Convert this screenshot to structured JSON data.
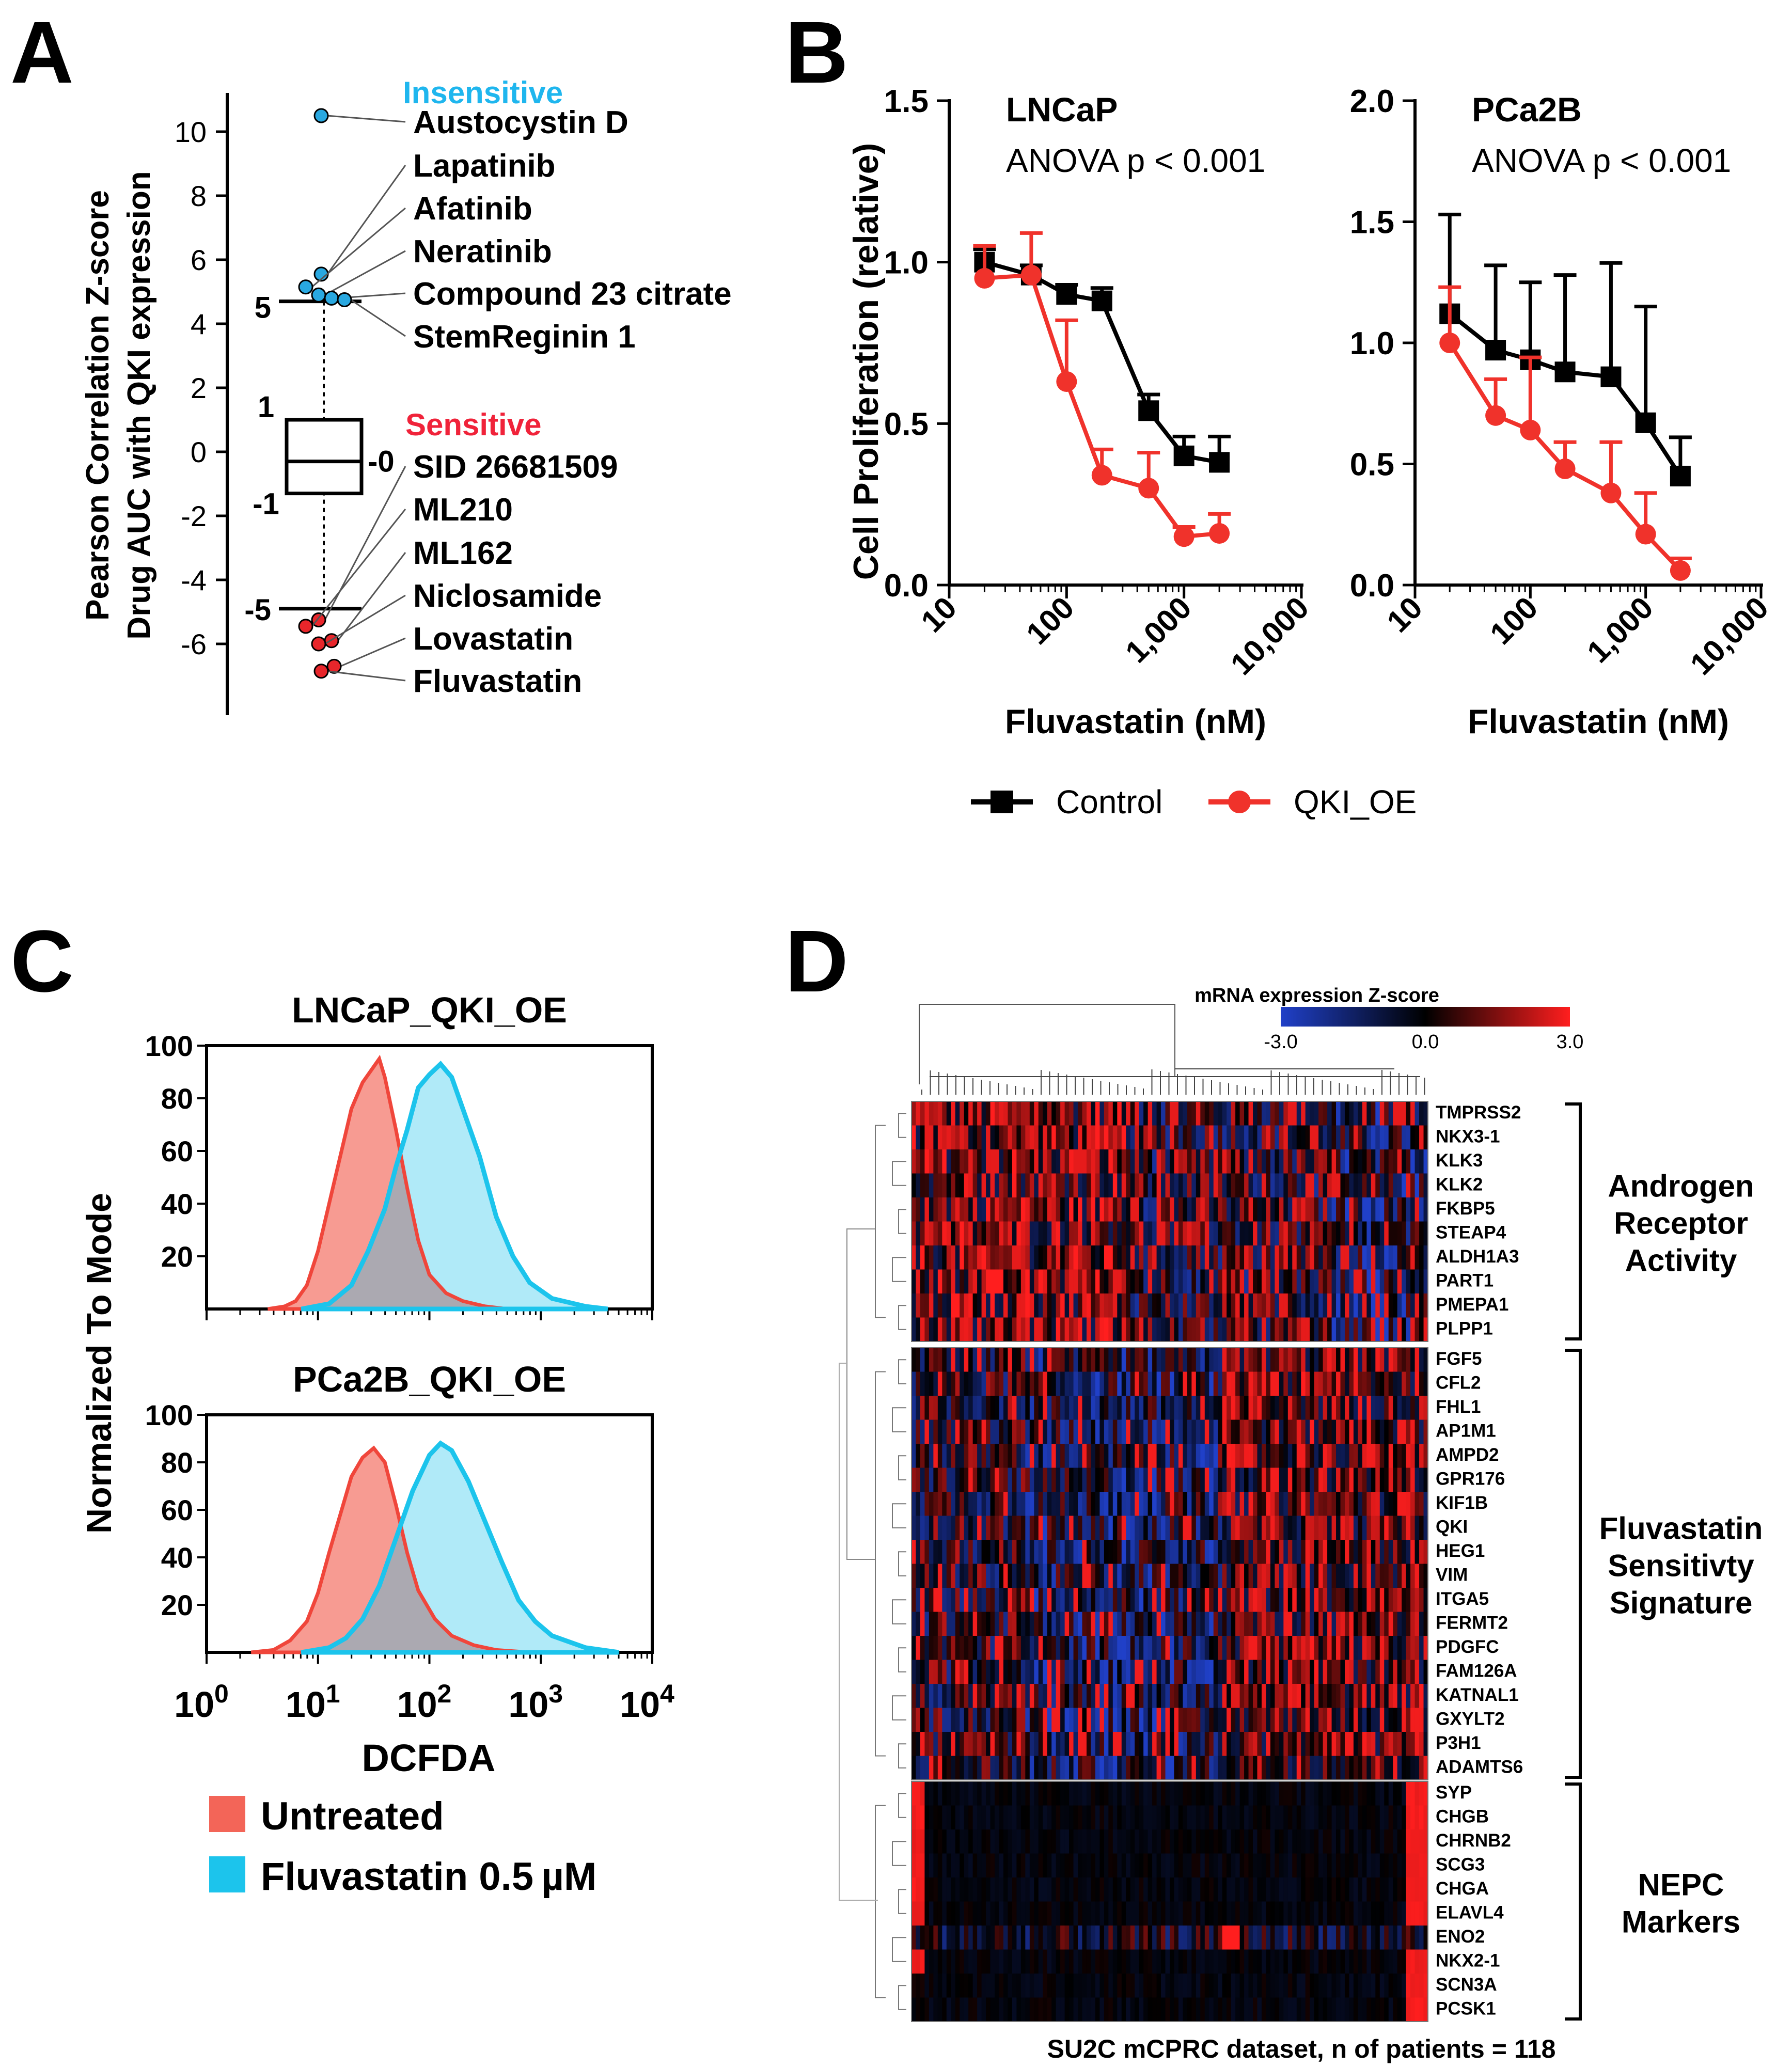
{
  "chart_data": [
    {
      "panel": "A",
      "type": "scatter",
      "ylabel_line1": "Pearson Correlation Z-score",
      "ylabel_line2": "Drug AUC with QKI expression",
      "yticks": [
        "10",
        "8",
        "6",
        "4",
        "2",
        "0",
        "-2",
        "-4",
        "-6"
      ],
      "ylim": [
        -7.8,
        11.5
      ],
      "box": {
        "q1": -1.3,
        "median": -0.3,
        "q3": 1.0,
        "label_q3": "1",
        "label_median": "-0",
        "label_q1": "-1"
      },
      "thresholds": {
        "upper": 4.7,
        "lower": -4.9,
        "label_upper": "5",
        "label_lower": "-5"
      },
      "group_insensitive": "Insensitive",
      "group_sensitive": "Sensitive",
      "insensitive": [
        {
          "name": "Austocystin D",
          "z": 10.5
        },
        {
          "name": "Lapatinib",
          "z": 5.55
        },
        {
          "name": "Afatinib",
          "z": 5.15
        },
        {
          "name": "Neratinib",
          "z": 4.9
        },
        {
          "name": "Compound 23 citrate",
          "z": 4.8
        },
        {
          "name": "StemReginin 1",
          "z": 4.75
        }
      ],
      "sensitive": [
        {
          "name": "SID 26681509",
          "z": -5.25
        },
        {
          "name": "ML210",
          "z": -5.45
        },
        {
          "name": "ML162",
          "z": -5.9
        },
        {
          "name": "Niclosamide",
          "z": -6.0
        },
        {
          "name": "Lovastatin",
          "z": -6.7
        },
        {
          "name": "Fluvastatin",
          "z": -6.85
        }
      ],
      "colors": {
        "insensitive": "#29a8e0",
        "sensitive": "#e8262b",
        "insensitive_label": "#1fb6ee",
        "sensitive_label": "#f0233a"
      }
    },
    {
      "panel": "B",
      "type": "line",
      "ylabel": "Cell Proliferation (relative)",
      "xlabel": "Fluvastatin (nM)",
      "xticks": [
        "10",
        "100",
        "1,000",
        "10,000"
      ],
      "legend": [
        "Control",
        "QKI_OE"
      ],
      "colors": {
        "Control": "#000000",
        "QKI_OE": "#f0322b"
      },
      "charts": [
        {
          "title": "LNCaP",
          "subtitle": "ANOVA p < 0.001",
          "ylim": [
            0,
            1.5
          ],
          "yticks": [
            "0.0",
            "0.5",
            "1.0",
            "1.5"
          ],
          "x": [
            20,
            50,
            100,
            200,
            500,
            1000,
            2000
          ],
          "series": [
            {
              "name": "Control",
              "values": [
                1.0,
                0.96,
                0.9,
                0.88,
                0.54,
                0.4,
                0.38
              ],
              "err": [
                0.04,
                0.03,
                0.03,
                0.04,
                0.05,
                0.06,
                0.08
              ]
            },
            {
              "name": "QKI_OE",
              "values": [
                0.95,
                0.96,
                0.63,
                0.34,
                0.3,
                0.15,
                0.16
              ],
              "err": [
                0.1,
                0.13,
                0.19,
                0.08,
                0.11,
                0.03,
                0.06
              ]
            }
          ]
        },
        {
          "title": "PCa2B",
          "subtitle": "ANOVA p < 0.001",
          "ylim": [
            0,
            2.0
          ],
          "yticks": [
            "0.0",
            "0.5",
            "1.0",
            "1.5",
            "2.0"
          ],
          "x": [
            20,
            50,
            100,
            200,
            500,
            1000,
            2000
          ],
          "series": [
            {
              "name": "Control",
              "values": [
                1.12,
                0.97,
                0.93,
                0.88,
                0.86,
                0.67,
                0.45
              ],
              "err": [
                0.41,
                0.35,
                0.32,
                0.4,
                0.47,
                0.48,
                0.16
              ]
            },
            {
              "name": "QKI_OE",
              "values": [
                1.0,
                0.7,
                0.64,
                0.48,
                0.38,
                0.21,
                0.06
              ],
              "err": [
                0.23,
                0.15,
                0.3,
                0.11,
                0.21,
                0.17,
                0.05
              ]
            }
          ]
        }
      ]
    },
    {
      "panel": "C",
      "type": "area",
      "ylabel": "Normalized To Mode",
      "xlabel": "DCFDA",
      "yticks": [
        "100",
        "80",
        "60",
        "40",
        "20"
      ],
      "ylim": [
        0,
        100
      ],
      "xticks": [
        {
          "base": "10",
          "exp": "0"
        },
        {
          "base": "10",
          "exp": "1"
        },
        {
          "base": "10",
          "exp": "2"
        },
        {
          "base": "10",
          "exp": "3"
        },
        {
          "base": "10",
          "exp": "4"
        }
      ],
      "legend": [
        "Untreated",
        "Fluvastatin 0.5 µM"
      ],
      "colors": {
        "Untreated": "#f36558",
        "Fluvastatin": "#1cc4ec",
        "overlap": "#c9b0b3"
      },
      "histograms": [
        {
          "title": "LNCaP_QKI_OE",
          "untreated": [
            [
              0.55,
              0
            ],
            [
              0.7,
              1
            ],
            [
              0.8,
              3
            ],
            [
              0.9,
              9
            ],
            [
              1.0,
              22
            ],
            [
              1.1,
              40
            ],
            [
              1.2,
              58
            ],
            [
              1.3,
              76
            ],
            [
              1.4,
              86
            ],
            [
              1.5,
              92
            ],
            [
              1.55,
              95
            ],
            [
              1.6,
              88
            ],
            [
              1.7,
              68
            ],
            [
              1.8,
              46
            ],
            [
              1.9,
              26
            ],
            [
              2.0,
              13
            ],
            [
              2.15,
              6
            ],
            [
              2.3,
              3
            ],
            [
              2.5,
              1
            ],
            [
              2.7,
              0
            ]
          ],
          "treated": [
            [
              0.85,
              0
            ],
            [
              1.1,
              2
            ],
            [
              1.3,
              9
            ],
            [
              1.45,
              22
            ],
            [
              1.6,
              38
            ],
            [
              1.7,
              54
            ],
            [
              1.8,
              68
            ],
            [
              1.9,
              84
            ],
            [
              2.0,
              89
            ],
            [
              2.1,
              93
            ],
            [
              2.2,
              88
            ],
            [
              2.3,
              76
            ],
            [
              2.45,
              58
            ],
            [
              2.6,
              35
            ],
            [
              2.75,
              20
            ],
            [
              2.9,
              10
            ],
            [
              3.1,
              4
            ],
            [
              3.4,
              1
            ],
            [
              3.6,
              0
            ]
          ]
        },
        {
          "title": "PCa2B_QKI_OE",
          "untreated": [
            [
              0.4,
              0
            ],
            [
              0.6,
              1
            ],
            [
              0.75,
              5
            ],
            [
              0.9,
              13
            ],
            [
              1.0,
              25
            ],
            [
              1.1,
              42
            ],
            [
              1.2,
              58
            ],
            [
              1.3,
              74
            ],
            [
              1.4,
              82
            ],
            [
              1.5,
              86
            ],
            [
              1.6,
              80
            ],
            [
              1.7,
              62
            ],
            [
              1.8,
              42
            ],
            [
              1.9,
              26
            ],
            [
              2.05,
              14
            ],
            [
              2.2,
              7
            ],
            [
              2.4,
              3
            ],
            [
              2.6,
              1
            ],
            [
              2.9,
              0
            ]
          ],
          "treated": [
            [
              0.85,
              0
            ],
            [
              1.1,
              2
            ],
            [
              1.25,
              6
            ],
            [
              1.4,
              14
            ],
            [
              1.55,
              28
            ],
            [
              1.7,
              48
            ],
            [
              1.85,
              68
            ],
            [
              2.0,
              83
            ],
            [
              2.1,
              88
            ],
            [
              2.2,
              85
            ],
            [
              2.35,
              72
            ],
            [
              2.5,
              55
            ],
            [
              2.65,
              38
            ],
            [
              2.8,
              22
            ],
            [
              2.95,
              13
            ],
            [
              3.1,
              7
            ],
            [
              3.4,
              2
            ],
            [
              3.7,
              0
            ]
          ]
        }
      ]
    },
    {
      "panel": "D",
      "type": "heatmap",
      "colorbar_title": "mRNA expression Z-score",
      "colorbar_ticks": [
        "-3.0",
        "0.0",
        "3.0"
      ],
      "caption": "SU2C mCPRC dataset, n of patients = 118",
      "n_patients": 118,
      "colors": {
        "low": "#2040c8",
        "mid": "#000000",
        "high": "#ff1e1e"
      },
      "groups": [
        {
          "name_lines": [
            "Androgen",
            "Receptor",
            "Activity"
          ],
          "genes": [
            "TMPRSS2",
            "NKX3-1",
            "KLK3",
            "KLK2",
            "FKBP5",
            "STEAP4",
            "ALDH1A3",
            "PART1",
            "PMEPA1",
            "PLPP1"
          ]
        },
        {
          "name_lines": [
            "Fluvastatin",
            "Sensitivty",
            "Signature"
          ],
          "genes": [
            "FGF5",
            "CFL2",
            "FHL1",
            "AP1M1",
            "AMPD2",
            "GPR176",
            "KIF1B",
            "QKI",
            "HEG1",
            "VIM",
            "ITGA5",
            "FERMT2",
            "PDGFC",
            "FAM126A",
            "KATNAL1",
            "GXYLT2",
            "P3H1",
            "ADAMTS6"
          ]
        },
        {
          "name_lines": [
            "NEPC",
            "Markers"
          ],
          "genes": [
            "SYP",
            "CHGB",
            "CHRNB2",
            "SCG3",
            "CHGA",
            "ELAVL4",
            "ENO2",
            "NKX2-1",
            "SCN3A",
            "PCSK1"
          ]
        }
      ]
    }
  ],
  "panel_letters": [
    "A",
    "B",
    "C",
    "D"
  ]
}
